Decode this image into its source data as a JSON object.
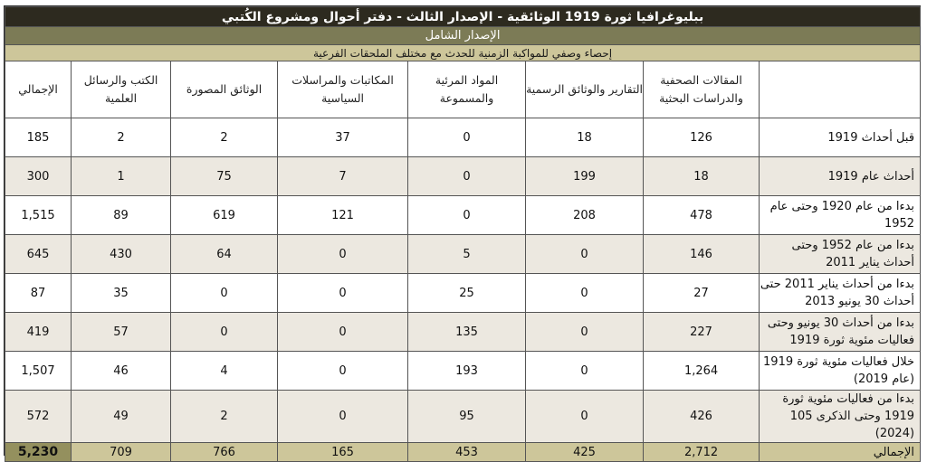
{
  "title": "ببليوغرافيا ثورة 1919 الوثائقية - الإصدار الثالث - دفتر أحوال ومشروع الكُتبي",
  "subtitle": "الإصدار الشامل",
  "description": "إحصاء وصفي للمواكبة الزمنية للحدث مع مختلف الملحقات الفرعية",
  "columns": [
    "المقالات الصحفية والدراسات البحثية",
    "التقارير والوثائق الرسمية",
    "المواد المرئية والمسموعة",
    "المكاتبات والمراسلات السياسية",
    "الوثائق المصورة",
    "الكتب والرسائل العلمية",
    "الإجمالي"
  ],
  "rows": [
    {
      "label": "قبل أحداث 1919",
      "values": [
        "126",
        "18",
        "0",
        "37",
        "2",
        "2",
        "185"
      ]
    },
    {
      "label": "أحداث عام 1919",
      "values": [
        "18",
        "199",
        "0",
        "7",
        "75",
        "1",
        "300"
      ]
    },
    {
      "label": "بدءا من عام 1920 وحتى عام 1952",
      "values": [
        "478",
        "208",
        "0",
        "121",
        "619",
        "89",
        "1,515"
      ]
    },
    {
      "label": "بدءا من عام 1952 وحتى أحداث يناير 2011",
      "values": [
        "146",
        "0",
        "5",
        "0",
        "64",
        "430",
        "645"
      ]
    },
    {
      "label": "بدءا من أحداث يناير 2011 حتى أحداث 30 يونيو 2013",
      "values": [
        "27",
        "0",
        "25",
        "0",
        "0",
        "35",
        "87"
      ]
    },
    {
      "label": "بدءا من أحداث 30 يونيو وحتى فعاليات مئوية ثورة 1919",
      "values": [
        "227",
        "0",
        "135",
        "0",
        "0",
        "57",
        "419"
      ]
    },
    {
      "label": "خلال فعاليات مئوية ثورة 1919 (عام 2019)",
      "values": [
        "1,264",
        "0",
        "193",
        "0",
        "4",
        "46",
        "1,507"
      ]
    },
    {
      "label": "بدءا من فعاليات مئوية ثورة 1919 وحتى الذكرى 105 (2024)",
      "values": [
        "426",
        "0",
        "95",
        "0",
        "2",
        "49",
        "572"
      ]
    }
  ],
  "total": {
    "label": "الإجمالي",
    "values": [
      "2,712",
      "425",
      "453",
      "165",
      "766",
      "709",
      "5,230"
    ]
  },
  "colors": {
    "title_bg": "#2d2a1f",
    "subtitle_bg": "#7c7b56",
    "desc_bg": "#cdc69a",
    "alt_row_bg": "#ece8e0",
    "grand_total_bg": "#94905e"
  }
}
